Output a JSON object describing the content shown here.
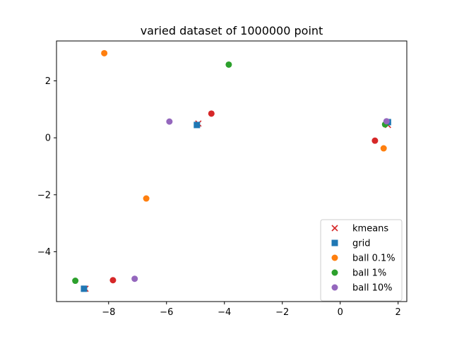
{
  "chart_data": {
    "type": "scatter",
    "title": "varied dataset of 1000000 point",
    "xlabel": "",
    "ylabel": "",
    "xlim": [
      -9.8,
      2.3
    ],
    "ylim": [
      -5.75,
      3.4
    ],
    "xticks": [
      -8,
      -6,
      -4,
      -2,
      0,
      2
    ],
    "yticks": [
      -4,
      -2,
      0,
      2
    ],
    "xtick_labels": [
      "−8",
      "−6",
      "−4",
      "−2",
      "0",
      "2"
    ],
    "ytick_labels": [
      "−4",
      "−2",
      "0",
      "2"
    ],
    "grid": false,
    "legend_position": "lower-right",
    "series": [
      {
        "name": "kmeans",
        "marker": "x",
        "color": "#d62728",
        "points": [
          {
            "x": -8.8,
            "y": -5.3
          },
          {
            "x": -4.9,
            "y": 0.5
          },
          {
            "x": 1.65,
            "y": 0.45
          }
        ]
      },
      {
        "name": "grid",
        "marker": "square",
        "color": "#1f77b4",
        "points": [
          {
            "x": -8.85,
            "y": -5.3
          },
          {
            "x": -4.95,
            "y": 0.45
          },
          {
            "x": 1.65,
            "y": 0.55
          }
        ]
      },
      {
        "name": "ball 0.1%",
        "marker": "circle",
        "color": "#ff7f0e",
        "points": [
          {
            "x": -8.15,
            "y": 2.97
          },
          {
            "x": -6.7,
            "y": -2.13
          },
          {
            "x": 1.5,
            "y": -0.37
          }
        ]
      },
      {
        "name": "ball 1%",
        "marker": "circle",
        "color": "#2ca02c",
        "points": [
          {
            "x": -9.15,
            "y": -5.02
          },
          {
            "x": -3.85,
            "y": 2.57
          },
          {
            "x": 1.55,
            "y": 0.47
          }
        ]
      },
      {
        "name": "",
        "marker": "circle",
        "color": "#d62728",
        "points": [
          {
            "x": -7.85,
            "y": -5.0
          },
          {
            "x": -4.45,
            "y": 0.85
          },
          {
            "x": 1.2,
            "y": -0.1
          }
        ]
      },
      {
        "name": "ball 10%",
        "marker": "circle",
        "color": "#9467bd",
        "points": [
          {
            "x": -7.1,
            "y": -4.95
          },
          {
            "x": -5.9,
            "y": 0.57
          },
          {
            "x": 1.6,
            "y": 0.58
          }
        ]
      }
    ]
  }
}
